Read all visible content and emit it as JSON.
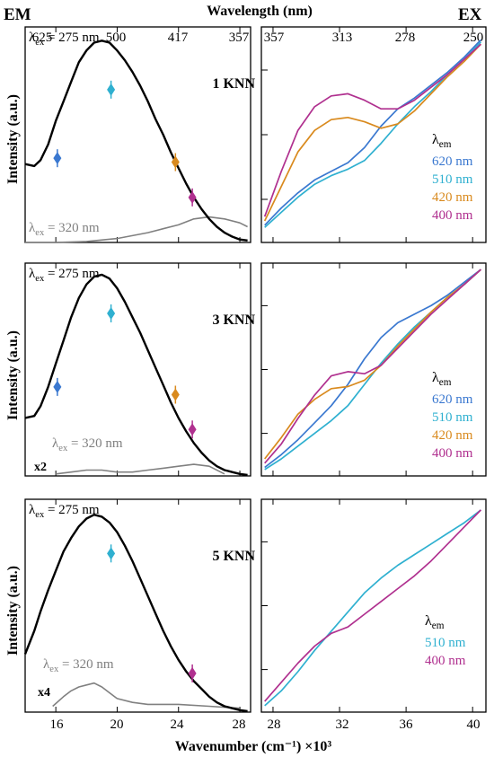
{
  "figure": {
    "em_label": "EM",
    "ex_label": "EX",
    "top_axis_title": "Wavelength (nm)",
    "bottom_axis_title": "Wavenumber (cm⁻¹) ×10³",
    "y_axis_title": "Intensity (a.u.)",
    "em_top_ticks": [
      "625",
      "500",
      "417",
      "357"
    ],
    "ex_top_ticks": [
      "357",
      "313",
      "278",
      "250"
    ],
    "em_x_ticks": [
      "16",
      "20",
      "24",
      "28"
    ],
    "ex_x_ticks": [
      "28",
      "32",
      "36",
      "40"
    ],
    "lambda_em_label": "λ",
    "lambda_em_sub": "em",
    "colors": {
      "620": "#3a78d0",
      "510": "#2fb0d0",
      "420": "#d98a1e",
      "400": "#b0308f",
      "main": "#000000",
      "secondary": "#808080"
    }
  },
  "chart_data": [
    {
      "type": "line",
      "panel": "em-1-knn",
      "x_unit": "wavenumber ×10³ cm⁻¹",
      "xlim": [
        14,
        28.7
      ],
      "ylim": [
        0,
        1.1
      ],
      "sample": "1 KNN",
      "excitation_main": "λex = 275 nm",
      "excitation_secondary": "λex = 320 nm",
      "scale_label": "",
      "series": [
        {
          "name": "λex = 275 nm",
          "x": [
            14,
            14.6,
            15,
            15.5,
            16,
            16.5,
            17,
            17.5,
            18,
            18.5,
            19,
            19.5,
            20,
            20.5,
            21,
            21.5,
            22,
            22.5,
            23,
            23.5,
            24,
            24.5,
            25,
            25.5,
            26,
            26.5,
            27,
            27.5,
            28,
            28.5
          ],
          "y": [
            0.4,
            0.39,
            0.42,
            0.5,
            0.62,
            0.72,
            0.82,
            0.92,
            0.98,
            1.02,
            1.03,
            1.02,
            0.98,
            0.93,
            0.87,
            0.8,
            0.72,
            0.63,
            0.55,
            0.46,
            0.38,
            0.3,
            0.23,
            0.17,
            0.12,
            0.08,
            0.05,
            0.03,
            0.015,
            0.01
          ]
        },
        {
          "name": "λex = 320 nm",
          "x": [
            14,
            16,
            18,
            20,
            22,
            23,
            24,
            25,
            26,
            27,
            28,
            28.5
          ],
          "y": [
            0.0,
            0.0,
            0.005,
            0.02,
            0.05,
            0.07,
            0.09,
            0.12,
            0.13,
            0.12,
            0.1,
            0.08
          ]
        }
      ],
      "markers": [
        {
          "label": "620 nm",
          "x": 16.1,
          "y": 0.43
        },
        {
          "label": "510 nm",
          "x": 19.6,
          "y": 0.78
        },
        {
          "label": "420 nm",
          "x": 23.8,
          "y": 0.41
        },
        {
          "label": "400 nm",
          "x": 24.9,
          "y": 0.23
        }
      ]
    },
    {
      "type": "line",
      "panel": "em-3-knn",
      "x_unit": "wavenumber ×10³ cm⁻¹",
      "xlim": [
        14,
        28.7
      ],
      "ylim": [
        0,
        1.1
      ],
      "sample": "3 KNN",
      "excitation_main": "λex = 275 nm",
      "excitation_secondary": "λex = 320 nm",
      "scale_label": "x2",
      "series": [
        {
          "name": "λex = 275 nm",
          "x": [
            14,
            14.6,
            15,
            15.5,
            16,
            16.5,
            17,
            17.5,
            18,
            18.5,
            19,
            19.5,
            20,
            20.5,
            21,
            21.5,
            22,
            22.5,
            23,
            23.5,
            24,
            24.5,
            25,
            25.5,
            26,
            26.5,
            27,
            27.5,
            28,
            28.5
          ],
          "y": [
            0.3,
            0.31,
            0.36,
            0.46,
            0.58,
            0.7,
            0.82,
            0.92,
            0.99,
            1.03,
            1.04,
            1.02,
            0.97,
            0.9,
            0.82,
            0.74,
            0.65,
            0.56,
            0.47,
            0.38,
            0.3,
            0.23,
            0.17,
            0.12,
            0.08,
            0.05,
            0.03,
            0.02,
            0.01,
            0.005
          ]
        },
        {
          "name": "λex = 320 nm",
          "x": [
            16,
            17,
            18,
            19,
            20,
            21,
            22,
            23,
            24,
            25,
            26,
            27
          ],
          "y": [
            0.01,
            0.02,
            0.03,
            0.03,
            0.02,
            0.02,
            0.03,
            0.04,
            0.05,
            0.06,
            0.05,
            0.01
          ]
        }
      ],
      "markers": [
        {
          "label": "620 nm",
          "x": 16.1,
          "y": 0.46
        },
        {
          "label": "510 nm",
          "x": 19.6,
          "y": 0.84
        },
        {
          "label": "420 nm",
          "x": 23.8,
          "y": 0.42
        },
        {
          "label": "400 nm",
          "x": 24.9,
          "y": 0.24
        }
      ]
    },
    {
      "type": "line",
      "panel": "em-5-knn",
      "x_unit": "wavenumber ×10³ cm⁻¹",
      "xlim": [
        14,
        28.7
      ],
      "ylim": [
        0,
        1.1
      ],
      "sample": "5 KNN",
      "excitation_main": "λex = 275 nm",
      "excitation_secondary": "λex = 320 nm",
      "scale_label": "x4",
      "series": [
        {
          "name": "λex = 275 nm",
          "x": [
            14,
            14.6,
            15,
            15.5,
            16,
            16.5,
            17,
            17.5,
            18,
            18.5,
            19,
            19.5,
            20,
            20.5,
            21,
            21.5,
            22,
            22.5,
            23,
            23.5,
            24,
            24.5,
            25,
            25.5,
            26,
            26.5,
            27,
            27.5,
            28,
            28.5
          ],
          "y": [
            0.3,
            0.42,
            0.52,
            0.63,
            0.73,
            0.83,
            0.9,
            0.96,
            1.0,
            1.02,
            1.01,
            0.98,
            0.93,
            0.86,
            0.78,
            0.69,
            0.6,
            0.51,
            0.42,
            0.34,
            0.27,
            0.21,
            0.16,
            0.12,
            0.08,
            0.05,
            0.03,
            0.02,
            0.01,
            0.005
          ]
        },
        {
          "name": "λex = 320 nm",
          "x": [
            15.8,
            16.5,
            17,
            17.5,
            18,
            18.5,
            19,
            19.5,
            20,
            21,
            22,
            24,
            26,
            28
          ],
          "y": [
            0.03,
            0.08,
            0.11,
            0.13,
            0.14,
            0.15,
            0.13,
            0.1,
            0.07,
            0.05,
            0.04,
            0.04,
            0.03,
            0.02
          ]
        }
      ],
      "markers": [
        {
          "label": "510 nm",
          "x": 19.6,
          "y": 0.82
        },
        {
          "label": "400 nm",
          "x": 24.9,
          "y": 0.2
        }
      ]
    },
    {
      "type": "line",
      "panel": "ex-1-knn",
      "x_unit": "wavenumber ×10³ cm⁻¹",
      "xlim": [
        27.3,
        40.8
      ],
      "ylim": [
        0,
        1
      ],
      "legend_title": "λem",
      "series": [
        {
          "name": "620 nm",
          "x": [
            27.5,
            28.5,
            29.5,
            30.5,
            31.5,
            32.5,
            33.5,
            34.5,
            35.5,
            36.5,
            37.5,
            38.5,
            39.5,
            40.5
          ],
          "y": [
            0.08,
            0.16,
            0.23,
            0.29,
            0.33,
            0.37,
            0.44,
            0.54,
            0.62,
            0.67,
            0.73,
            0.79,
            0.86,
            0.94
          ]
        },
        {
          "name": "510 nm",
          "x": [
            27.5,
            28.5,
            29.5,
            30.5,
            31.5,
            32.5,
            33.5,
            34.5,
            35.5,
            36.5,
            37.5,
            38.5,
            39.5,
            40.5
          ],
          "y": [
            0.07,
            0.14,
            0.21,
            0.27,
            0.31,
            0.34,
            0.38,
            0.46,
            0.55,
            0.63,
            0.7,
            0.78,
            0.85,
            0.93
          ]
        },
        {
          "name": "420 nm",
          "x": [
            27.5,
            28.5,
            29.5,
            30.5,
            31.5,
            32.5,
            33.5,
            34.5,
            35.5,
            36.5,
            37.5,
            38.5,
            39.5,
            40.5
          ],
          "y": [
            0.1,
            0.26,
            0.42,
            0.52,
            0.57,
            0.58,
            0.56,
            0.53,
            0.55,
            0.61,
            0.69,
            0.77,
            0.84,
            0.92
          ]
        },
        {
          "name": "400 nm",
          "x": [
            27.5,
            28.5,
            29.5,
            30.5,
            31.5,
            32.5,
            33.5,
            34.5,
            35.5,
            36.5,
            37.5,
            38.5,
            39.5,
            40.5
          ],
          "y": [
            0.12,
            0.33,
            0.52,
            0.63,
            0.68,
            0.69,
            0.66,
            0.62,
            0.62,
            0.66,
            0.72,
            0.78,
            0.85,
            0.92
          ]
        }
      ]
    },
    {
      "type": "line",
      "panel": "ex-3-knn",
      "x_unit": "wavenumber ×10³ cm⁻¹",
      "xlim": [
        27.3,
        40.8
      ],
      "ylim": [
        0,
        1
      ],
      "legend_title": "λem",
      "series": [
        {
          "name": "620 nm",
          "x": [
            27.5,
            28.5,
            29.5,
            30.5,
            31.5,
            32.5,
            33.5,
            34.5,
            35.5,
            36.5,
            37.5,
            38.5,
            39.5,
            40.5
          ],
          "y": [
            0.04,
            0.1,
            0.17,
            0.25,
            0.33,
            0.43,
            0.55,
            0.65,
            0.72,
            0.76,
            0.8,
            0.85,
            0.91,
            0.97
          ]
        },
        {
          "name": "510 nm",
          "x": [
            27.5,
            28.5,
            29.5,
            30.5,
            31.5,
            32.5,
            33.5,
            34.5,
            35.5,
            36.5,
            37.5,
            38.5,
            39.5,
            40.5
          ],
          "y": [
            0.03,
            0.08,
            0.14,
            0.2,
            0.26,
            0.33,
            0.43,
            0.53,
            0.62,
            0.7,
            0.77,
            0.84,
            0.9,
            0.97
          ]
        },
        {
          "name": "420 nm",
          "x": [
            27.5,
            28.5,
            29.5,
            30.5,
            31.5,
            32.5,
            33.5,
            34.5,
            35.5,
            36.5,
            37.5,
            38.5,
            39.5,
            40.5
          ],
          "y": [
            0.08,
            0.18,
            0.29,
            0.36,
            0.41,
            0.42,
            0.45,
            0.52,
            0.61,
            0.69,
            0.77,
            0.84,
            0.9,
            0.97
          ]
        },
        {
          "name": "400 nm",
          "x": [
            27.5,
            28.5,
            29.5,
            30.5,
            31.5,
            32.5,
            33.5,
            34.5,
            35.5,
            36.5,
            37.5,
            38.5,
            39.5,
            40.5
          ],
          "y": [
            0.06,
            0.15,
            0.27,
            0.38,
            0.47,
            0.49,
            0.48,
            0.52,
            0.6,
            0.68,
            0.76,
            0.83,
            0.9,
            0.97
          ]
        }
      ]
    },
    {
      "type": "line",
      "panel": "ex-5-knn",
      "x_unit": "wavenumber ×10³ cm⁻¹",
      "xlim": [
        27.3,
        40.8
      ],
      "ylim": [
        0,
        1
      ],
      "legend_title": "λem",
      "series": [
        {
          "name": "510 nm",
          "x": [
            27.5,
            28.5,
            29.5,
            30.5,
            31.5,
            32.5,
            33.5,
            34.5,
            35.5,
            36.5,
            37.5,
            38.5,
            39.5,
            40.5
          ],
          "y": [
            0.03,
            0.1,
            0.19,
            0.29,
            0.38,
            0.47,
            0.56,
            0.63,
            0.69,
            0.74,
            0.79,
            0.84,
            0.89,
            0.95
          ]
        },
        {
          "name": "400 nm",
          "x": [
            27.5,
            28.5,
            29.5,
            30.5,
            31.5,
            32.5,
            33.5,
            34.5,
            35.5,
            36.5,
            37.5,
            38.5,
            39.5,
            40.5
          ],
          "y": [
            0.05,
            0.14,
            0.23,
            0.31,
            0.37,
            0.4,
            0.46,
            0.52,
            0.58,
            0.64,
            0.71,
            0.79,
            0.87,
            0.95
          ]
        }
      ]
    }
  ]
}
